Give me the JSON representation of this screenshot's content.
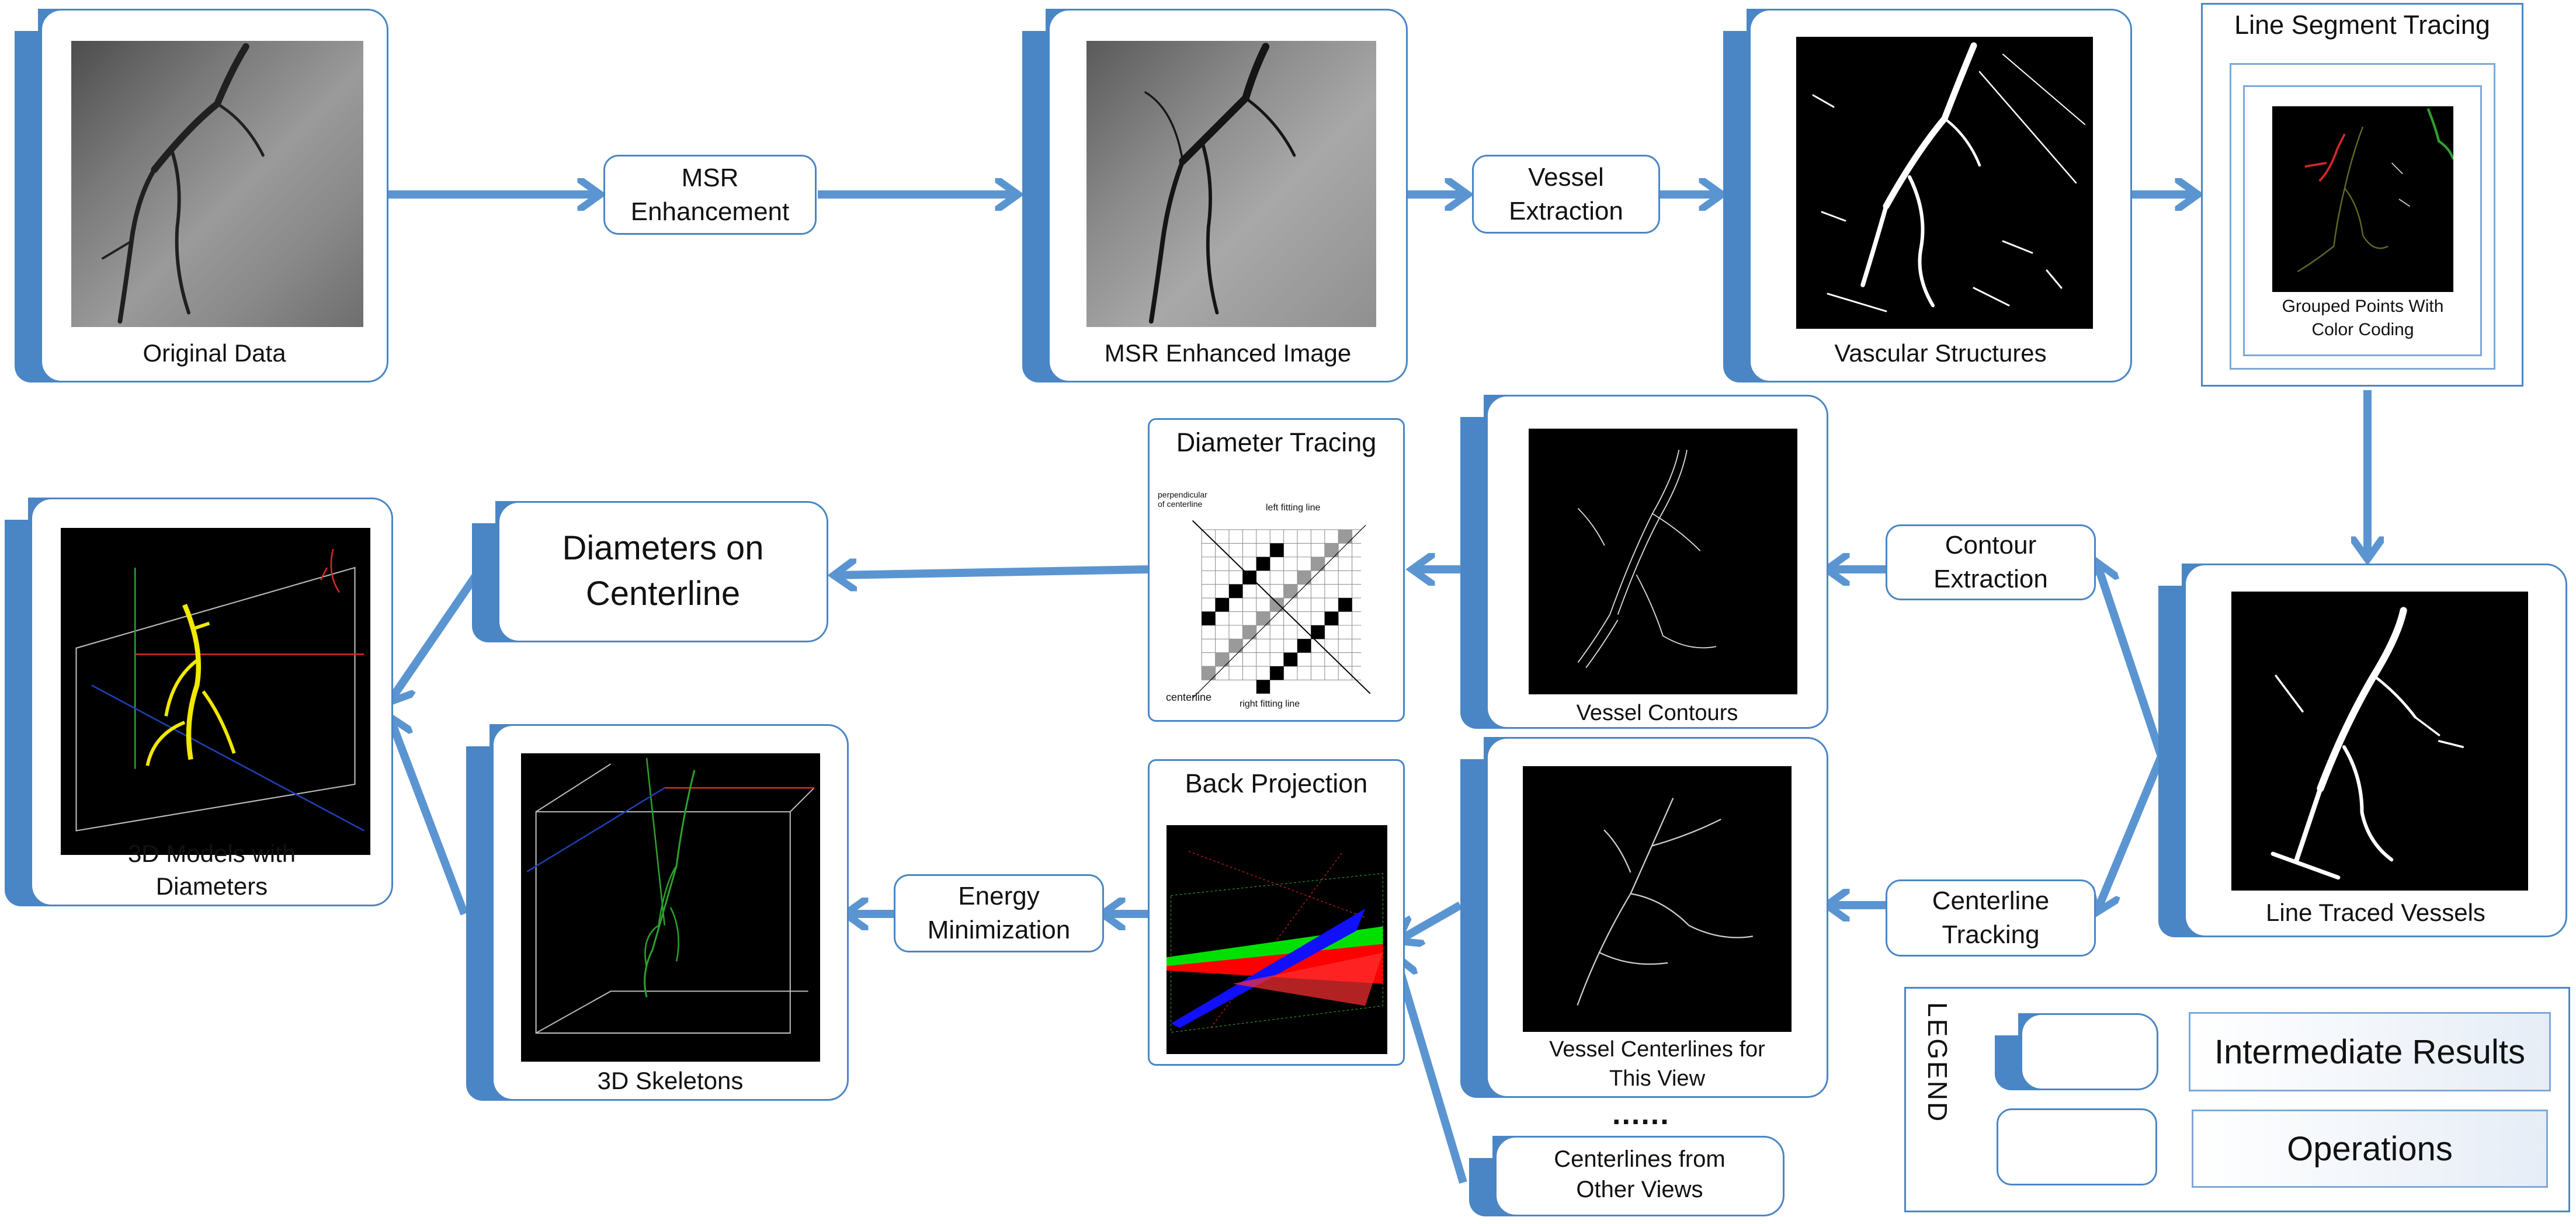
{
  "colors": {
    "accent": "#4a86c5",
    "node_border": "#4a86c5",
    "arrow": "#5b95d1"
  },
  "nodes": {
    "original": {
      "label": "Original Data"
    },
    "msr_enhanced": {
      "label": "MSR Enhanced Image"
    },
    "vascular": {
      "label": "Vascular Structures"
    },
    "line_segment": {
      "title": "Line Segment Tracing",
      "caption": "Grouped Points With\nColor Coding"
    },
    "line_traced": {
      "label": "Line Traced Vessels"
    },
    "contours": {
      "label": "Vessel Contours"
    },
    "centerlines_view": {
      "label": "Vessel Centerlines for\nThis View"
    },
    "centerlines_other": {
      "label": "Centerlines from\nOther Views",
      "dots": "......"
    },
    "diameter_tracing": {
      "title": "Diameter Tracing",
      "inset_labels": {
        "perpendicular": "perpendicular\nof centerline",
        "left": "left fitting line",
        "right": "right fitting line",
        "centerline": "centerline"
      }
    },
    "diam_on_cl": {
      "label": "Diameters on\nCenterline"
    },
    "models_3d": {
      "label": "3D Models with\nDiameters"
    },
    "back_projection": {
      "title": "Back Projection"
    },
    "skeletons": {
      "label": "3D Skeletons"
    }
  },
  "operations": {
    "msr": "MSR\nEnhancement",
    "vessel_extraction": "Vessel\nExtraction",
    "contour_extraction": "Contour\nExtraction",
    "centerline_tracking": "Centerline\nTracking",
    "energy_minimization": "Energy\nMinimization"
  },
  "legend": {
    "title": "LEGEND",
    "intermediate": "Intermediate Results",
    "operations": "Operations"
  }
}
